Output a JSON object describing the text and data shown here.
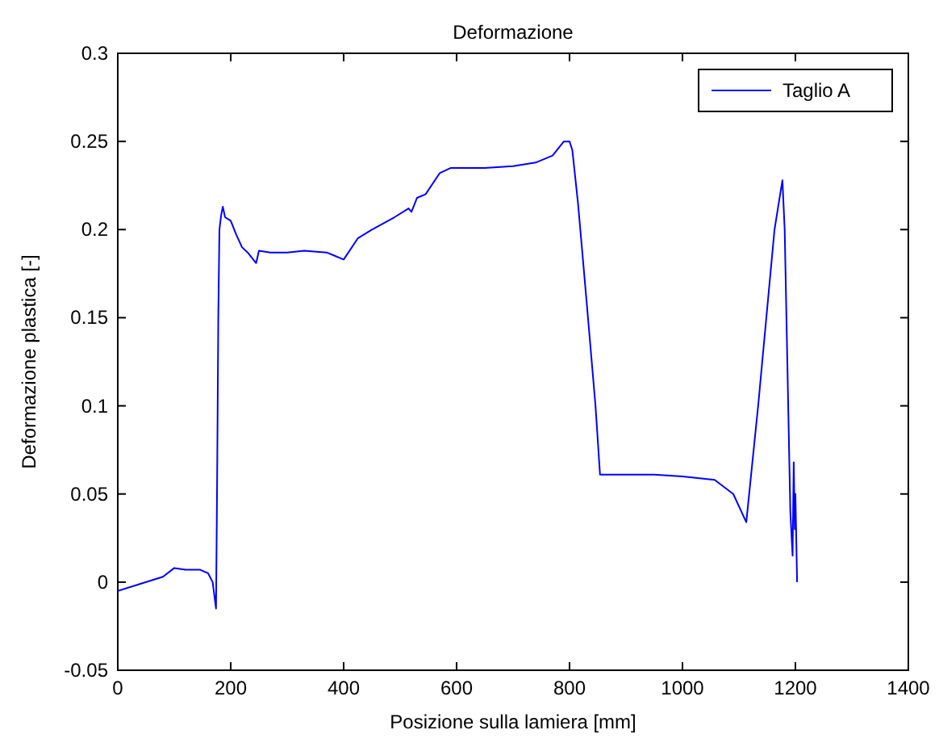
{
  "chart_data": {
    "type": "line",
    "title": "Deformazione",
    "xlabel": "Posizione sulla lamiera [mm]",
    "ylabel": "Deformazione plastica [-]",
    "xlim": [
      0,
      1400
    ],
    "xticks": [
      0,
      200,
      400,
      600,
      800,
      1000,
      1200,
      1400
    ],
    "ylim": [
      -0.05,
      0.3
    ],
    "yticks": [
      -0.05,
      0,
      0.05,
      0.1,
      0.15,
      0.2,
      0.25,
      0.3
    ],
    "legend": "top right",
    "grid": false,
    "series": [
      {
        "name": "Taglio A",
        "color": "#0000ff",
        "x": [
          0,
          40,
          80,
          100,
          120,
          146,
          160,
          168,
          174,
          176,
          178,
          180,
          183,
          186,
          190,
          200,
          210,
          220,
          230,
          245,
          250,
          270,
          300,
          330,
          370,
          385,
          400,
          425,
          450,
          490,
          515,
          520,
          530,
          545,
          570,
          590,
          650,
          700,
          740,
          770,
          790,
          800,
          805,
          815,
          830,
          846,
          854,
          870,
          950,
          1000,
          1057,
          1090,
          1113,
          1134,
          1163,
          1177,
          1181,
          1186,
          1191,
          1195,
          1197,
          1199,
          1200,
          1203
        ],
        "values": [
          -0.005,
          -0.001,
          0.003,
          0.008,
          0.007,
          0.007,
          0.005,
          0.0,
          -0.015,
          0.06,
          0.15,
          0.2,
          0.208,
          0.213,
          0.207,
          0.205,
          0.197,
          0.19,
          0.187,
          0.181,
          0.188,
          0.187,
          0.187,
          0.188,
          0.187,
          0.185,
          0.183,
          0.195,
          0.2,
          0.207,
          0.212,
          0.21,
          0.218,
          0.22,
          0.232,
          0.235,
          0.235,
          0.236,
          0.238,
          0.242,
          0.25,
          0.25,
          0.245,
          0.215,
          0.16,
          0.1,
          0.061,
          0.061,
          0.061,
          0.06,
          0.058,
          0.05,
          0.034,
          0.1,
          0.2,
          0.228,
          0.2,
          0.12,
          0.04,
          0.015,
          0.068,
          0.03,
          0.05,
          0.0
        ]
      }
    ]
  }
}
